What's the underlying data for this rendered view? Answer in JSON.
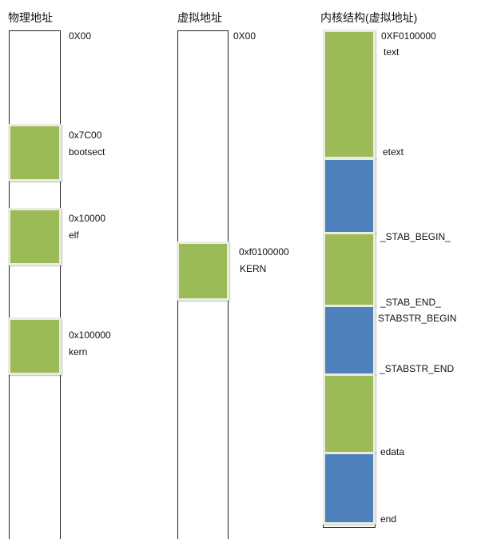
{
  "columns": {
    "physical": {
      "title": "物理地址",
      "top_label": "0X00",
      "blocks": [
        {
          "addr": "0x7C00",
          "name": "bootsect"
        },
        {
          "addr": "0x10000",
          "name": "elf"
        },
        {
          "addr": "0x100000",
          "name": "kern"
        }
      ]
    },
    "virtual": {
      "title": "虚拟地址",
      "top_label": "0X00",
      "blocks": [
        {
          "addr": "0xf0100000",
          "name": "KERN"
        }
      ]
    },
    "kernel": {
      "title": "内核结构(虚拟地址)",
      "labels": [
        "0XF0100000",
        "text",
        "etext",
        "_STAB_BEGIN_",
        "_STAB_END_",
        "STABSTR_BEGIN",
        "_STABSTR_END",
        "edata",
        "end"
      ]
    }
  },
  "colors": {
    "green": "#9bbb59",
    "blue": "#4f81bd",
    "block_border": "#e9ecdf"
  }
}
